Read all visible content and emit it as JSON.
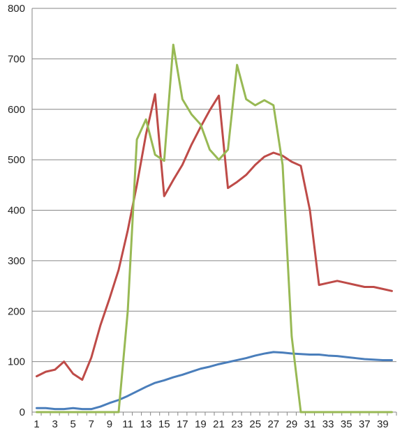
{
  "chart_data": {
    "type": "line",
    "x": [
      1,
      2,
      3,
      4,
      5,
      6,
      7,
      8,
      9,
      10,
      11,
      12,
      13,
      14,
      15,
      16,
      17,
      18,
      19,
      20,
      21,
      22,
      23,
      24,
      25,
      26,
      27,
      28,
      29,
      30,
      31,
      32,
      33,
      34,
      35,
      36,
      37,
      38,
      39,
      40
    ],
    "xtick_labels": [
      "1",
      "3",
      "5",
      "7",
      "9",
      "11",
      "13",
      "15",
      "17",
      "19",
      "21",
      "23",
      "25",
      "27",
      "29",
      "31",
      "33",
      "35",
      "37",
      "39"
    ],
    "ytick_labels": [
      "0",
      "100",
      "200",
      "300",
      "400",
      "500",
      "600",
      "700",
      "800"
    ],
    "ylim": [
      0,
      800
    ],
    "grid": true,
    "legend": "none",
    "series": [
      {
        "color": "#4a7ebb",
        "values": [
          8,
          8,
          6,
          6,
          8,
          6,
          6,
          11,
          18,
          24,
          32,
          41,
          50,
          58,
          63,
          69,
          74,
          80,
          86,
          90,
          95,
          99,
          103,
          107,
          112,
          116,
          119,
          118,
          116,
          115,
          114,
          114,
          112,
          111,
          109,
          107,
          105,
          104,
          103,
          103
        ]
      },
      {
        "color": "#be4b48",
        "values": [
          71,
          80,
          84,
          100,
          76,
          64,
          108,
          172,
          225,
          282,
          360,
          450,
          550,
          630,
          428,
          460,
          490,
          530,
          565,
          598,
          627,
          444,
          456,
          470,
          490,
          506,
          514,
          508,
          496,
          488,
          400,
          252,
          256,
          260,
          256,
          252,
          248,
          248,
          244,
          240
        ]
      },
      {
        "color": "#98b954",
        "values": [
          0,
          0,
          0,
          0,
          0,
          0,
          0,
          0,
          0,
          0,
          200,
          540,
          580,
          510,
          498,
          728,
          620,
          590,
          570,
          520,
          500,
          520,
          688,
          620,
          608,
          618,
          608,
          490,
          150,
          0,
          0,
          0,
          0,
          0,
          0,
          0,
          0,
          0,
          0,
          0
        ]
      }
    ]
  }
}
